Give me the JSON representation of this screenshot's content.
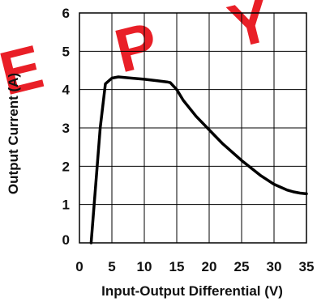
{
  "chart_data": {
    "type": "line",
    "title": "",
    "xlabel": "Input-Output Differential (V)",
    "ylabel": "Output Current (A)",
    "xlim": [
      0,
      35
    ],
    "ylim": [
      0,
      6
    ],
    "xticks": [
      0,
      5,
      10,
      15,
      20,
      25,
      30,
      35
    ],
    "yticks": [
      0,
      1,
      2,
      3,
      4,
      5,
      6
    ],
    "grid": true,
    "legend": "none",
    "line_color": "#000000",
    "series": [
      {
        "x": [
          1.8,
          2.5,
          3.2,
          4.0,
          5.0,
          6.0,
          8.0,
          10.0,
          12.0,
          13.5,
          14.0,
          15.0,
          16.0,
          18.0,
          20.0,
          22.0,
          25.0,
          28.0,
          30.0,
          32.0,
          33.0,
          34.0,
          35.0
        ],
        "values": [
          0.0,
          1.5,
          3.0,
          4.15,
          4.3,
          4.33,
          4.3,
          4.27,
          4.23,
          4.2,
          4.18,
          4.0,
          3.72,
          3.3,
          2.95,
          2.6,
          2.15,
          1.75,
          1.53,
          1.38,
          1.33,
          1.3,
          1.28
        ]
      }
    ]
  },
  "watermark": {
    "text": "EPY",
    "color": "#e8141c"
  }
}
